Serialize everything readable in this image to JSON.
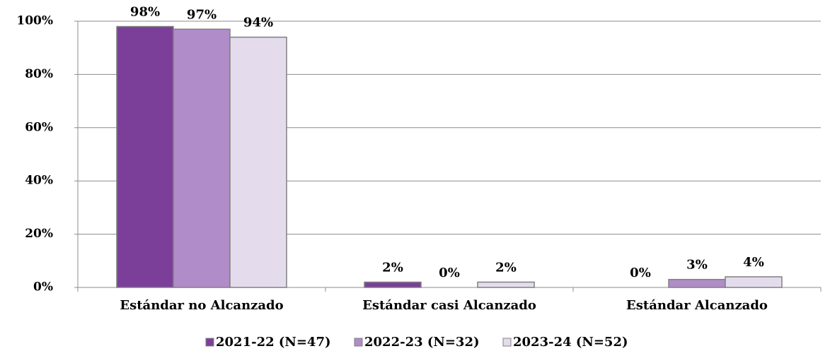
{
  "chart_data": {
    "type": "bar",
    "categories": [
      "Estándar no Alcanzado",
      "Estándar casi Alcanzado",
      "Estándar Alcanzado"
    ],
    "series": [
      {
        "name": "2021-22 (N=47)",
        "color": "#7b3f99",
        "values": [
          98,
          2,
          0
        ],
        "value_labels": [
          "98%",
          "2%",
          "0%"
        ]
      },
      {
        "name": "2022-23 (N=32)",
        "color": "#b08cc8",
        "values": [
          97,
          0,
          3
        ],
        "value_labels": [
          "97%",
          "0%",
          "3%"
        ]
      },
      {
        "name": "2023-24 (N=52)",
        "color": "#e4dcec",
        "values": [
          94,
          2,
          4
        ],
        "value_labels": [
          "94%",
          "2%",
          "4%"
        ]
      }
    ],
    "ylim": [
      0,
      100
    ],
    "yticks": [
      {
        "value": 0,
        "label": "0%"
      },
      {
        "value": 20,
        "label": "20%"
      },
      {
        "value": 40,
        "label": "40%"
      },
      {
        "value": 60,
        "label": "60%"
      },
      {
        "value": 80,
        "label": "80%"
      },
      {
        "value": 100,
        "label": "100%"
      }
    ],
    "grid": true,
    "legend": "bottom"
  }
}
